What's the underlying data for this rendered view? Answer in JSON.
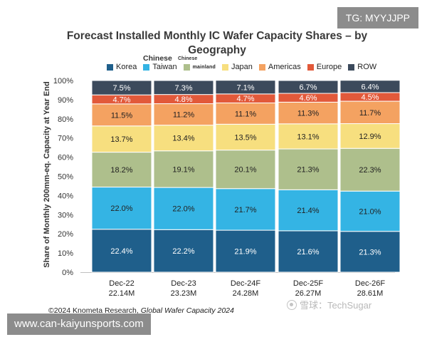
{
  "header": {
    "tag": "TG: MYYJJPP",
    "url": "www.can-kaiyunsports.com"
  },
  "footer": {
    "copyright": "©2024 Knometa Research, ",
    "source": "Global Wafer Capacity 2024"
  },
  "watermark": {
    "icon": "snowball-icon",
    "text": "雪球：TechSugar"
  },
  "chart_data": {
    "type": "bar",
    "stacked": true,
    "title": "Forecast Installed Monthly IC Wafer Capacity Shares – by Geography",
    "title_lines": [
      "Forecast Installed Monthly IC Wafer Capacity Shares – by",
      "Geography"
    ],
    "ylabel": "Share of Monthly 200mm-eq. Capacity at Year End",
    "xlabel": "",
    "ylim": [
      0,
      100
    ],
    "yticks": [
      "0%",
      "10%",
      "20%",
      "30%",
      "40%",
      "50%",
      "60%",
      "70%",
      "80%",
      "90%",
      "100%"
    ],
    "categories": [
      "Dec-22",
      "Dec-23",
      "Dec-24F",
      "Dec-25F",
      "Dec-26F"
    ],
    "category_totals": [
      "22.14M",
      "23.23M",
      "24.28M",
      "26.27M",
      "28.61M"
    ],
    "legend_position": "top",
    "grid": false,
    "legend_top_labels": [
      "Chinese",
      "Chinese"
    ],
    "series": [
      {
        "name": "Korea",
        "color": "#1f5f8b",
        "values": [
          22.4,
          22.2,
          21.9,
          21.6,
          21.3
        ],
        "labels": [
          "22.4%",
          "22.2%",
          "21.9%",
          "21.6%",
          "21.3%"
        ]
      },
      {
        "name": "Taiwan",
        "color": "#34b4e4",
        "values": [
          22.0,
          22.0,
          21.7,
          21.4,
          21.0
        ],
        "labels": [
          "22.0%",
          "22.0%",
          "21.7%",
          "21.4%",
          "21.0%"
        ]
      },
      {
        "name": "mainland",
        "color": "#aebf8c",
        "values": [
          18.2,
          19.1,
          20.1,
          21.3,
          22.3
        ],
        "labels": [
          "18.2%",
          "19.1%",
          "20.1%",
          "21.3%",
          "22.3%"
        ]
      },
      {
        "name": "Japan",
        "color": "#f7df7f",
        "values": [
          13.7,
          13.4,
          13.5,
          13.1,
          12.9
        ],
        "labels": [
          "13.7%",
          "13.4%",
          "13.5%",
          "13.1%",
          "12.9%"
        ]
      },
      {
        "name": "Americas",
        "color": "#f4a261",
        "values": [
          11.5,
          11.2,
          11.1,
          11.3,
          11.7
        ],
        "labels": [
          "11.5%",
          "11.2%",
          "11.1%",
          "11.3%",
          "11.7%"
        ]
      },
      {
        "name": "Europe",
        "color": "#e2593a",
        "values": [
          4.7,
          4.8,
          4.7,
          4.6,
          4.5
        ],
        "labels": [
          "4.7%",
          "4.8%",
          "4.7%",
          "4.6%",
          "4.5%"
        ]
      },
      {
        "name": "ROW",
        "color": "#3c4a5c",
        "values": [
          7.5,
          7.3,
          7.1,
          6.7,
          6.4
        ],
        "labels": [
          "7.5%",
          "7.3%",
          "7.1%",
          "6.7%",
          "6.4%"
        ]
      }
    ]
  }
}
